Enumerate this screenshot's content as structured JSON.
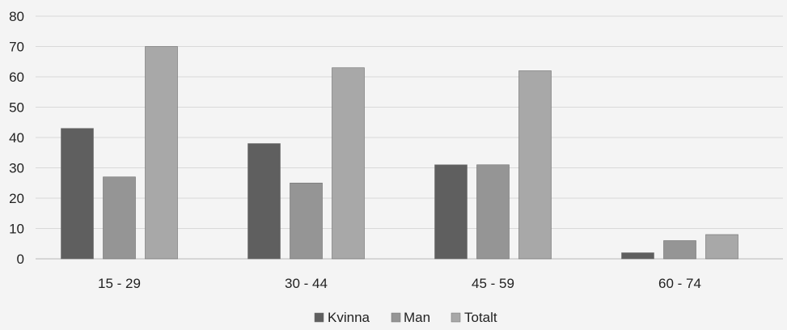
{
  "chart_data": {
    "type": "bar",
    "title": "",
    "xlabel": "",
    "ylabel": "",
    "categories": [
      "15 - 29",
      "30 - 44",
      "45 - 59",
      "60 - 74"
    ],
    "series": [
      {
        "name": "Kvinna",
        "values": [
          43,
          38,
          31,
          2
        ],
        "color": "#5f5f5f"
      },
      {
        "name": "Man",
        "values": [
          27,
          25,
          31,
          6
        ],
        "color": "#959595"
      },
      {
        "name": "Totalt",
        "values": [
          70,
          63,
          62,
          8
        ],
        "color": "#a8a8a8"
      }
    ],
    "ylim": [
      0,
      80
    ],
    "yticks": [
      "0",
      "10",
      "20",
      "30",
      "40",
      "50",
      "60",
      "70",
      "80"
    ],
    "grid": true,
    "legend_position": "bottom-center"
  }
}
